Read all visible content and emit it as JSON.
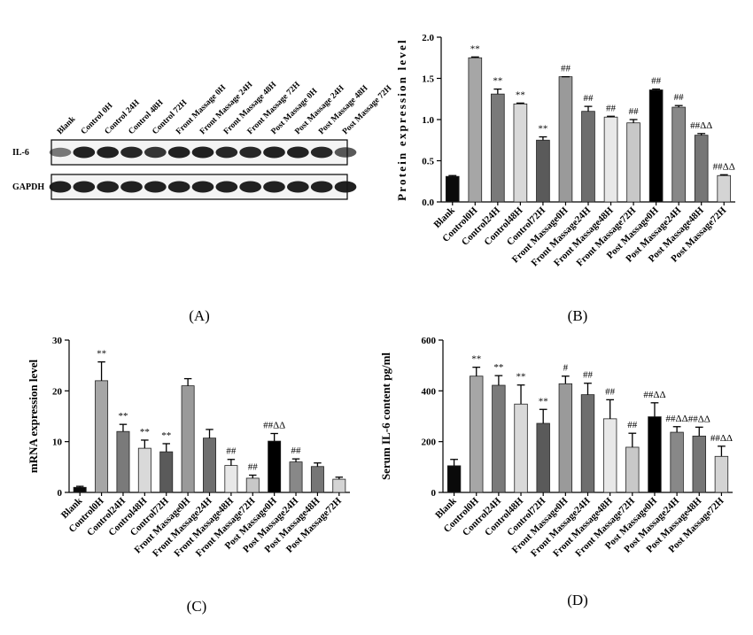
{
  "colors": {
    "blank": "#0a0a0a",
    "control0h": "#a6a6a6",
    "control24h": "#7a7a7a",
    "control48h": "#d9d9d9",
    "control72h": "#5a5a5a",
    "front0h": "#9a9a9a",
    "front24h": "#6e6e6e",
    "front48h": "#e8e8e8",
    "front72h": "#c8c8c8",
    "post0h": "#000000",
    "post24h": "#888888",
    "post48h": "#767676",
    "post72h": "#d4d4d4",
    "blot_band": "#151515",
    "blot_bg": "#f2f2f2"
  },
  "panel_labels": {
    "a": "(A)",
    "b": "(B)",
    "c": "(C)",
    "d": "(D)"
  },
  "blot": {
    "lanes": [
      "Blank",
      "Control 0H",
      "Control 24H",
      "Control 48H",
      "Control 72H",
      "Front Massage 0H",
      "Front Massage 24H",
      "Front Massage 48H",
      "Front Massage 72H",
      "Post Massage 0H",
      "Post Massage 24H",
      "Post Massage 48H",
      "Post Massage 72H"
    ],
    "rows": [
      {
        "label": "IL-6",
        "intensity": [
          0.35,
          1.0,
          1.0,
          0.95,
          0.85,
          1.0,
          1.0,
          0.95,
          0.95,
          1.0,
          1.0,
          0.95,
          0.6
        ]
      },
      {
        "label": "GAPDH",
        "intensity": [
          1.0,
          1.0,
          1.0,
          1.0,
          1.0,
          1.0,
          1.0,
          1.0,
          1.0,
          1.0,
          1.0,
          1.0,
          1.0
        ]
      }
    ]
  },
  "chart_data": [
    {
      "id": "B",
      "type": "bar",
      "ylabel": "Protein expression level",
      "xlabel": "",
      "ylim": [
        0,
        2.0
      ],
      "yticks": [
        "0.0",
        "0.5",
        "1.0",
        "1.5",
        "2.0"
      ],
      "categories": [
        "Blank",
        "Control0H",
        "Control24H",
        "Control48H",
        "Control72H",
        "Front Massage0H",
        "Front Massage24H",
        "Front Massage48H",
        "Front Massage72H",
        "Post Massage0H",
        "Post Massage24H",
        "Post Massage48H",
        "Post Massage72H"
      ],
      "values": [
        0.31,
        1.75,
        1.31,
        1.19,
        0.75,
        1.52,
        1.1,
        1.03,
        0.96,
        1.36,
        1.15,
        0.81,
        0.32
      ],
      "errors": [
        0.01,
        0.01,
        0.06,
        0.01,
        0.04,
        0.0,
        0.06,
        0.01,
        0.04,
        0.01,
        0.02,
        0.02,
        0.01
      ],
      "annotations": [
        "",
        "**",
        "**",
        "**",
        "**",
        "##",
        "##",
        "##",
        "##",
        "##",
        "##",
        "##ΔΔ",
        "##ΔΔ"
      ]
    },
    {
      "id": "C",
      "type": "bar",
      "ylabel": "mRNA expression level",
      "xlabel": "",
      "ylim": [
        0,
        30
      ],
      "yticks": [
        "0",
        "10",
        "20",
        "30"
      ],
      "categories": [
        "Blank",
        "Control0H",
        "Control24H",
        "Control48H",
        "Control72H",
        "Front Massage0H",
        "Front Massage24H",
        "Front Massage48H",
        "Front Massage72H",
        "Post Massage0H",
        "Post Massage24H",
        "Post Massage48H",
        "Post Massage72H"
      ],
      "values": [
        1.0,
        22.0,
        12.0,
        8.7,
        8.0,
        21.0,
        10.7,
        5.3,
        2.8,
        10.1,
        6.0,
        5.1,
        2.6
      ],
      "errors": [
        0.2,
        3.7,
        1.4,
        1.6,
        1.6,
        1.4,
        1.7,
        1.2,
        0.6,
        1.5,
        0.6,
        0.7,
        0.4
      ],
      "annotations": [
        "",
        "**",
        "**",
        "**",
        "**",
        "",
        "",
        "##",
        "##",
        "##ΔΔ",
        "##",
        "",
        ""
      ]
    },
    {
      "id": "D",
      "type": "bar",
      "ylabel": "Serum IL-6 content pg/ml",
      "xlabel": "",
      "ylim": [
        0,
        600
      ],
      "yticks": [
        "0",
        "200",
        "400",
        "600"
      ],
      "categories": [
        "Blank",
        "Control0H",
        "Control24H",
        "Control48H",
        "Control72H",
        "Front Massage0H",
        "Front Massage24H",
        "Front Massage48H",
        "Front Massage72H",
        "Post Massage0H",
        "Post Massage24H",
        "Post Massage48H",
        "Post Massage72H"
      ],
      "values": [
        105,
        458,
        422,
        348,
        272,
        428,
        385,
        290,
        178,
        298,
        237,
        222,
        142
      ],
      "errors": [
        25,
        35,
        38,
        75,
        55,
        30,
        45,
        75,
        55,
        55,
        22,
        35,
        40
      ],
      "annotations": [
        "",
        "**",
        "**",
        "**",
        "**",
        "#",
        "##",
        "##",
        "##",
        "##ΔΔ",
        "##ΔΔ",
        "##ΔΔ",
        "##ΔΔ"
      ]
    }
  ]
}
